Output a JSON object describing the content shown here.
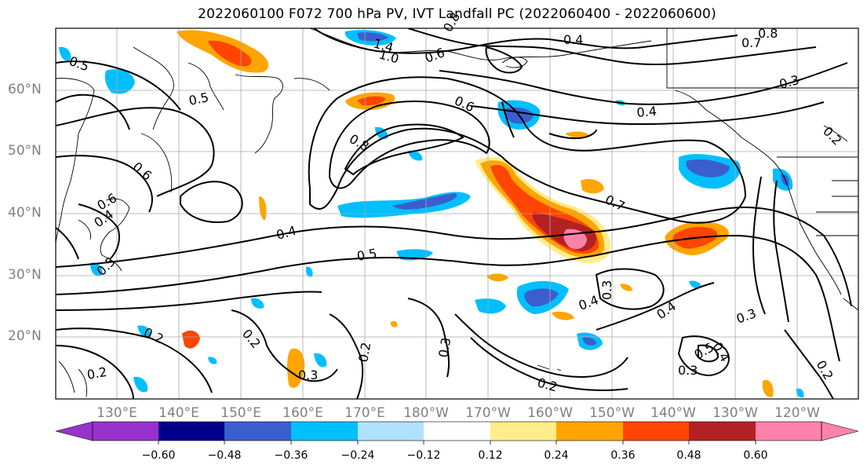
{
  "title": "2022060100 F072 700 hPa PV, IVT Landfall PC (2022060400 - 2022060600)",
  "lat_labels": [
    "60°N",
    "50°N",
    "40°N",
    "30°N",
    "20°N"
  ],
  "lon_labels": [
    "130°E",
    "140°E",
    "150°E",
    "160°E",
    "170°E",
    "180°W",
    "170°W",
    "160°W",
    "150°W",
    "140°W",
    "130°W",
    "120°W"
  ],
  "contour_labels": [
    "1.4",
    "1.0",
    "0.8",
    "0.6",
    "0.5",
    "0.4",
    "0.7",
    "0.8",
    "0.4",
    "0.6",
    "0.5",
    "0.4",
    "0.3",
    "0.2",
    "0.2",
    "0.3",
    "0.2",
    "0.5",
    "0.8",
    "0.7",
    "0.5",
    "0.4",
    "0.2",
    "0.3",
    "0.3",
    "0.4",
    "0.3",
    "0.4",
    "0.5",
    "0.3",
    "0.2",
    "0.2",
    "0.6",
    "0.6",
    "0.4",
    "0.2"
  ],
  "colorbar": {
    "ticks": [
      "−0.60",
      "−0.48",
      "−0.36",
      "−0.24",
      "−0.12",
      "0.12",
      "0.24",
      "0.36",
      "0.48",
      "0.60"
    ],
    "colors": [
      "#9932CC",
      "#00008B",
      "#3A5FCD",
      "#00BFFF",
      "#B0E2FF",
      "#FFFFFF",
      "#FFEC8B",
      "#FFA500",
      "#FF4500",
      "#B22222",
      "#FF82AB"
    ]
  }
}
